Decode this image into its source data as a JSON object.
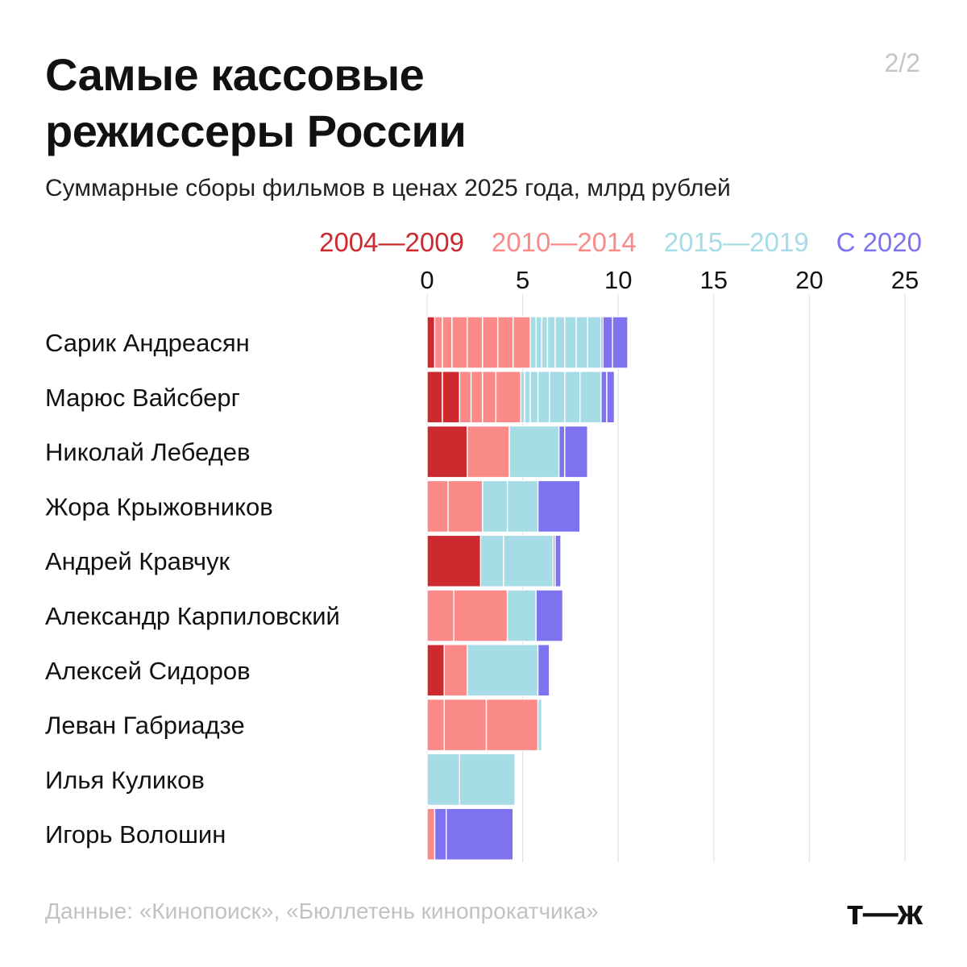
{
  "title_line1": "Самые кассовые",
  "title_line2": "режиссеры России",
  "subtitle": "Суммарные сборы фильмов в ценах 2025 года, млрд рублей",
  "page_indicator": "2/2",
  "source": "Данные: «Кинопоиск», «Бюллетень кинопрокатчика»",
  "logo": "т—ж",
  "chart_data": {
    "type": "bar",
    "orientation": "horizontal",
    "stacked": true,
    "title": "Самые кассовые режиссеры России",
    "subtitle": "Суммарные сборы фильмов в ценах 2025 года, млрд рублей",
    "xlim": [
      0,
      25
    ],
    "ticks": [
      0,
      5,
      10,
      15,
      20,
      25
    ],
    "tick_labels": [
      "0",
      "5",
      "10",
      "15",
      "20",
      "25"
    ],
    "legend_position": "top-right",
    "legend": [
      {
        "key": "p1",
        "label": "2004—2009",
        "color": "#cc2a2e"
      },
      {
        "key": "p2",
        "label": "2010—2014",
        "color": "#fa8a88"
      },
      {
        "key": "p3",
        "label": "2015—2019",
        "color": "#a5dce6"
      },
      {
        "key": "p4",
        "label": "С 2020",
        "color": "#7f72ef"
      }
    ],
    "categories": [
      "Сарик Андреасян",
      "Марюс Вайсберг",
      "Николай Лебедев",
      "Жора Крыжовников",
      "Андрей Кравчук",
      "Александр Карпиловский",
      "Алексей Сидоров",
      "Леван Габриадзе",
      "Илья Куликов",
      "Игорь Волошин"
    ],
    "bars": [
      {
        "name": "Сарик Андреасян",
        "films": [
          [
            "p1",
            0.4
          ],
          [
            "p2",
            0.4
          ],
          [
            "p2",
            0.5
          ],
          [
            "p2",
            0.8
          ],
          [
            "p2",
            0.8
          ],
          [
            "p2",
            0.8
          ],
          [
            "p2",
            0.8
          ],
          [
            "p2",
            0.9
          ],
          [
            "p3",
            0.3
          ],
          [
            "p3",
            0.3
          ],
          [
            "p3",
            0.3
          ],
          [
            "p3",
            0.4
          ],
          [
            "p3",
            0.5
          ],
          [
            "p3",
            0.6
          ],
          [
            "p3",
            0.6
          ],
          [
            "p3",
            0.7
          ],
          [
            "p4",
            0.1
          ],
          [
            "p4",
            0.5
          ],
          [
            "p4",
            0.8
          ]
        ]
      },
      {
        "name": "Марюс Вайсберг",
        "films": [
          [
            "p1",
            0.8
          ],
          [
            "p1",
            0.9
          ],
          [
            "p2",
            0.6
          ],
          [
            "p2",
            0.6
          ],
          [
            "p2",
            0.7
          ],
          [
            "p2",
            1.3
          ],
          [
            "p3",
            0.2
          ],
          [
            "p3",
            0.3
          ],
          [
            "p3",
            0.4
          ],
          [
            "p3",
            0.6
          ],
          [
            "p3",
            0.8
          ],
          [
            "p3",
            0.8
          ],
          [
            "p3",
            1.1
          ],
          [
            "p4",
            0.3
          ],
          [
            "p4",
            0.4
          ]
        ]
      },
      {
        "name": "Николай Лебедев",
        "films": [
          [
            "p1",
            2.1
          ],
          [
            "p2",
            2.2
          ],
          [
            "p3",
            2.6
          ],
          [
            "p4",
            0.3
          ],
          [
            "p4",
            1.2
          ]
        ]
      },
      {
        "name": "Жора Крыжовников",
        "films": [
          [
            "p2",
            1.1
          ],
          [
            "p2",
            1.8
          ],
          [
            "p3",
            1.3
          ],
          [
            "p3",
            1.6
          ],
          [
            "p4",
            2.2
          ]
        ]
      },
      {
        "name": "Андрей Кравчук",
        "films": [
          [
            "p1",
            2.8
          ],
          [
            "p3",
            1.2
          ],
          [
            "p3",
            2.6
          ],
          [
            "p4",
            0.1
          ],
          [
            "p4",
            0.3
          ]
        ]
      },
      {
        "name": "Александр Карпиловский",
        "films": [
          [
            "p2",
            1.4
          ],
          [
            "p2",
            2.8
          ],
          [
            "p3",
            1.5
          ],
          [
            "p4",
            1.4
          ]
        ]
      },
      {
        "name": "Алексей Сидоров",
        "films": [
          [
            "p1",
            0.9
          ],
          [
            "p2",
            1.2
          ],
          [
            "p3",
            3.7
          ],
          [
            "p4",
            0.6
          ]
        ]
      },
      {
        "name": "Леван Габриадзе",
        "films": [
          [
            "p2",
            0.9
          ],
          [
            "p2",
            2.2
          ],
          [
            "p2",
            2.7
          ],
          [
            "p3",
            0.2
          ]
        ]
      },
      {
        "name": "Илья Куликов",
        "films": [
          [
            "p3",
            1.7
          ],
          [
            "p3",
            2.9
          ]
        ]
      },
      {
        "name": "Игорь Волошин",
        "films": [
          [
            "p2",
            0.4
          ],
          [
            "p4",
            0.6
          ],
          [
            "p4",
            3.5
          ]
        ]
      }
    ]
  }
}
